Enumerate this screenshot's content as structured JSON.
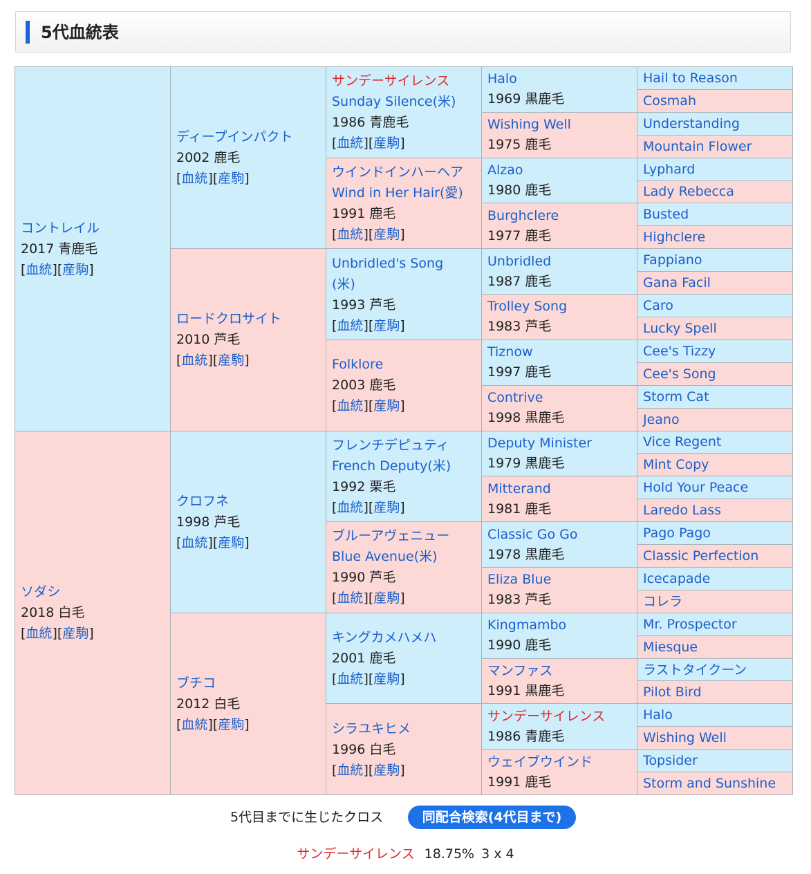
{
  "header": {
    "title": "5代血統表"
  },
  "links": {
    "pedigree": "血統",
    "offspring": "産駒"
  },
  "pedigree": {
    "g1": [
      {
        "name": "コントレイル",
        "info": "2017 青鹿毛",
        "sex": "m",
        "links": true
      },
      {
        "name": "ソダシ",
        "info": "2018 白毛",
        "sex": "f",
        "links": true
      }
    ],
    "g2": [
      {
        "name": "ディープインパクト",
        "info": "2002 鹿毛",
        "sex": "m",
        "links": true
      },
      {
        "name": "ロードクロサイト",
        "info": "2010 芦毛",
        "sex": "f",
        "links": true
      },
      {
        "name": "クロフネ",
        "info": "1998 芦毛",
        "sex": "m",
        "links": true
      },
      {
        "name": "ブチコ",
        "info": "2012 白毛",
        "sex": "f",
        "links": true
      }
    ],
    "g3": [
      {
        "name": "サンデーサイレンス",
        "name2": "Sunday Silence(米)",
        "info": "1986 青鹿毛",
        "sex": "m",
        "red": true,
        "links": true
      },
      {
        "name": "ウインドインハーヘア",
        "name2": "Wind in Her Hair(愛)",
        "info": "1991 鹿毛",
        "sex": "f",
        "links": true
      },
      {
        "name": "Unbridled's Song",
        "name2": "(米)",
        "info": "1993 芦毛",
        "sex": "m",
        "links": true
      },
      {
        "name": "Folklore",
        "info": "2003 鹿毛",
        "sex": "f",
        "links": true
      },
      {
        "name": "フレンチデピュティ",
        "name2": "French Deputy(米)",
        "info": "1992 栗毛",
        "sex": "m",
        "links": true
      },
      {
        "name": "ブルーアヴェニュー",
        "name2": "Blue Avenue(米)",
        "info": "1990 芦毛",
        "sex": "f",
        "links": true
      },
      {
        "name": "キングカメハメハ",
        "info": "2001 鹿毛",
        "sex": "m",
        "links": true
      },
      {
        "name": "シラユキヒメ",
        "info": "1996 白毛",
        "sex": "f",
        "links": true
      }
    ],
    "g4": [
      {
        "name": "Halo",
        "info": "1969 黒鹿毛",
        "sex": "m"
      },
      {
        "name": "Wishing Well",
        "info": "1975 鹿毛",
        "sex": "f"
      },
      {
        "name": "Alzao",
        "info": "1980 鹿毛",
        "sex": "m"
      },
      {
        "name": "Burghclere",
        "info": "1977 鹿毛",
        "sex": "f"
      },
      {
        "name": "Unbridled",
        "info": "1987 鹿毛",
        "sex": "m"
      },
      {
        "name": "Trolley Song",
        "info": "1983 芦毛",
        "sex": "f"
      },
      {
        "name": "Tiznow",
        "info": "1997 鹿毛",
        "sex": "m"
      },
      {
        "name": "Contrive",
        "info": "1998 黒鹿毛",
        "sex": "f"
      },
      {
        "name": "Deputy Minister",
        "info": "1979 黒鹿毛",
        "sex": "m"
      },
      {
        "name": "Mitterand",
        "info": "1981 鹿毛",
        "sex": "f"
      },
      {
        "name": "Classic Go Go",
        "info": "1978 黒鹿毛",
        "sex": "m"
      },
      {
        "name": "Eliza Blue",
        "info": "1983 芦毛",
        "sex": "f"
      },
      {
        "name": "Kingmambo",
        "info": "1990 鹿毛",
        "sex": "m"
      },
      {
        "name": "マンファス",
        "info": "1991 黒鹿毛",
        "sex": "f"
      },
      {
        "name": "サンデーサイレンス",
        "info": "1986 青鹿毛",
        "sex": "m",
        "red": true
      },
      {
        "name": "ウェイブウインド",
        "info": "1991 鹿毛",
        "sex": "f"
      }
    ],
    "g5": [
      {
        "name": "Hail to Reason",
        "sex": "m"
      },
      {
        "name": "Cosmah",
        "sex": "f"
      },
      {
        "name": "Understanding",
        "sex": "m"
      },
      {
        "name": "Mountain Flower",
        "sex": "f"
      },
      {
        "name": "Lyphard",
        "sex": "m"
      },
      {
        "name": "Lady Rebecca",
        "sex": "f"
      },
      {
        "name": "Busted",
        "sex": "m"
      },
      {
        "name": "Highclere",
        "sex": "f"
      },
      {
        "name": "Fappiano",
        "sex": "m"
      },
      {
        "name": "Gana Facil",
        "sex": "f"
      },
      {
        "name": "Caro",
        "sex": "m"
      },
      {
        "name": "Lucky Spell",
        "sex": "f"
      },
      {
        "name": "Cee's Tizzy",
        "sex": "m"
      },
      {
        "name": "Cee's Song",
        "sex": "f"
      },
      {
        "name": "Storm Cat",
        "sex": "m"
      },
      {
        "name": "Jeano",
        "sex": "f"
      },
      {
        "name": "Vice Regent",
        "sex": "m"
      },
      {
        "name": "Mint Copy",
        "sex": "f"
      },
      {
        "name": "Hold Your Peace",
        "sex": "m"
      },
      {
        "name": "Laredo Lass",
        "sex": "f"
      },
      {
        "name": "Pago Pago",
        "sex": "m"
      },
      {
        "name": "Classic Perfection",
        "sex": "f"
      },
      {
        "name": "Icecapade",
        "sex": "m"
      },
      {
        "name": "コレラ",
        "sex": "f"
      },
      {
        "name": "Mr. Prospector",
        "sex": "m"
      },
      {
        "name": "Miesque",
        "sex": "f"
      },
      {
        "name": "ラストタイクーン",
        "sex": "m"
      },
      {
        "name": "Pilot Bird",
        "sex": "f"
      },
      {
        "name": "Halo",
        "sex": "m"
      },
      {
        "name": "Wishing Well",
        "sex": "f"
      },
      {
        "name": "Topsider",
        "sex": "m"
      },
      {
        "name": "Storm and Sunshine",
        "sex": "f"
      }
    ]
  },
  "cross": {
    "label": "5代目までに生じたクロス",
    "search_button": "同配合検索(4代目まで)",
    "result": {
      "horse": "サンデーサイレンス",
      "percent": "18.75%",
      "generation": "3 x 4"
    }
  },
  "colors": {
    "male_bg": "#cfeefb",
    "female_bg": "#fcd9d6",
    "link": "#1a5fcc",
    "highlight": "#e02a2a",
    "button": "#1d72e8"
  }
}
